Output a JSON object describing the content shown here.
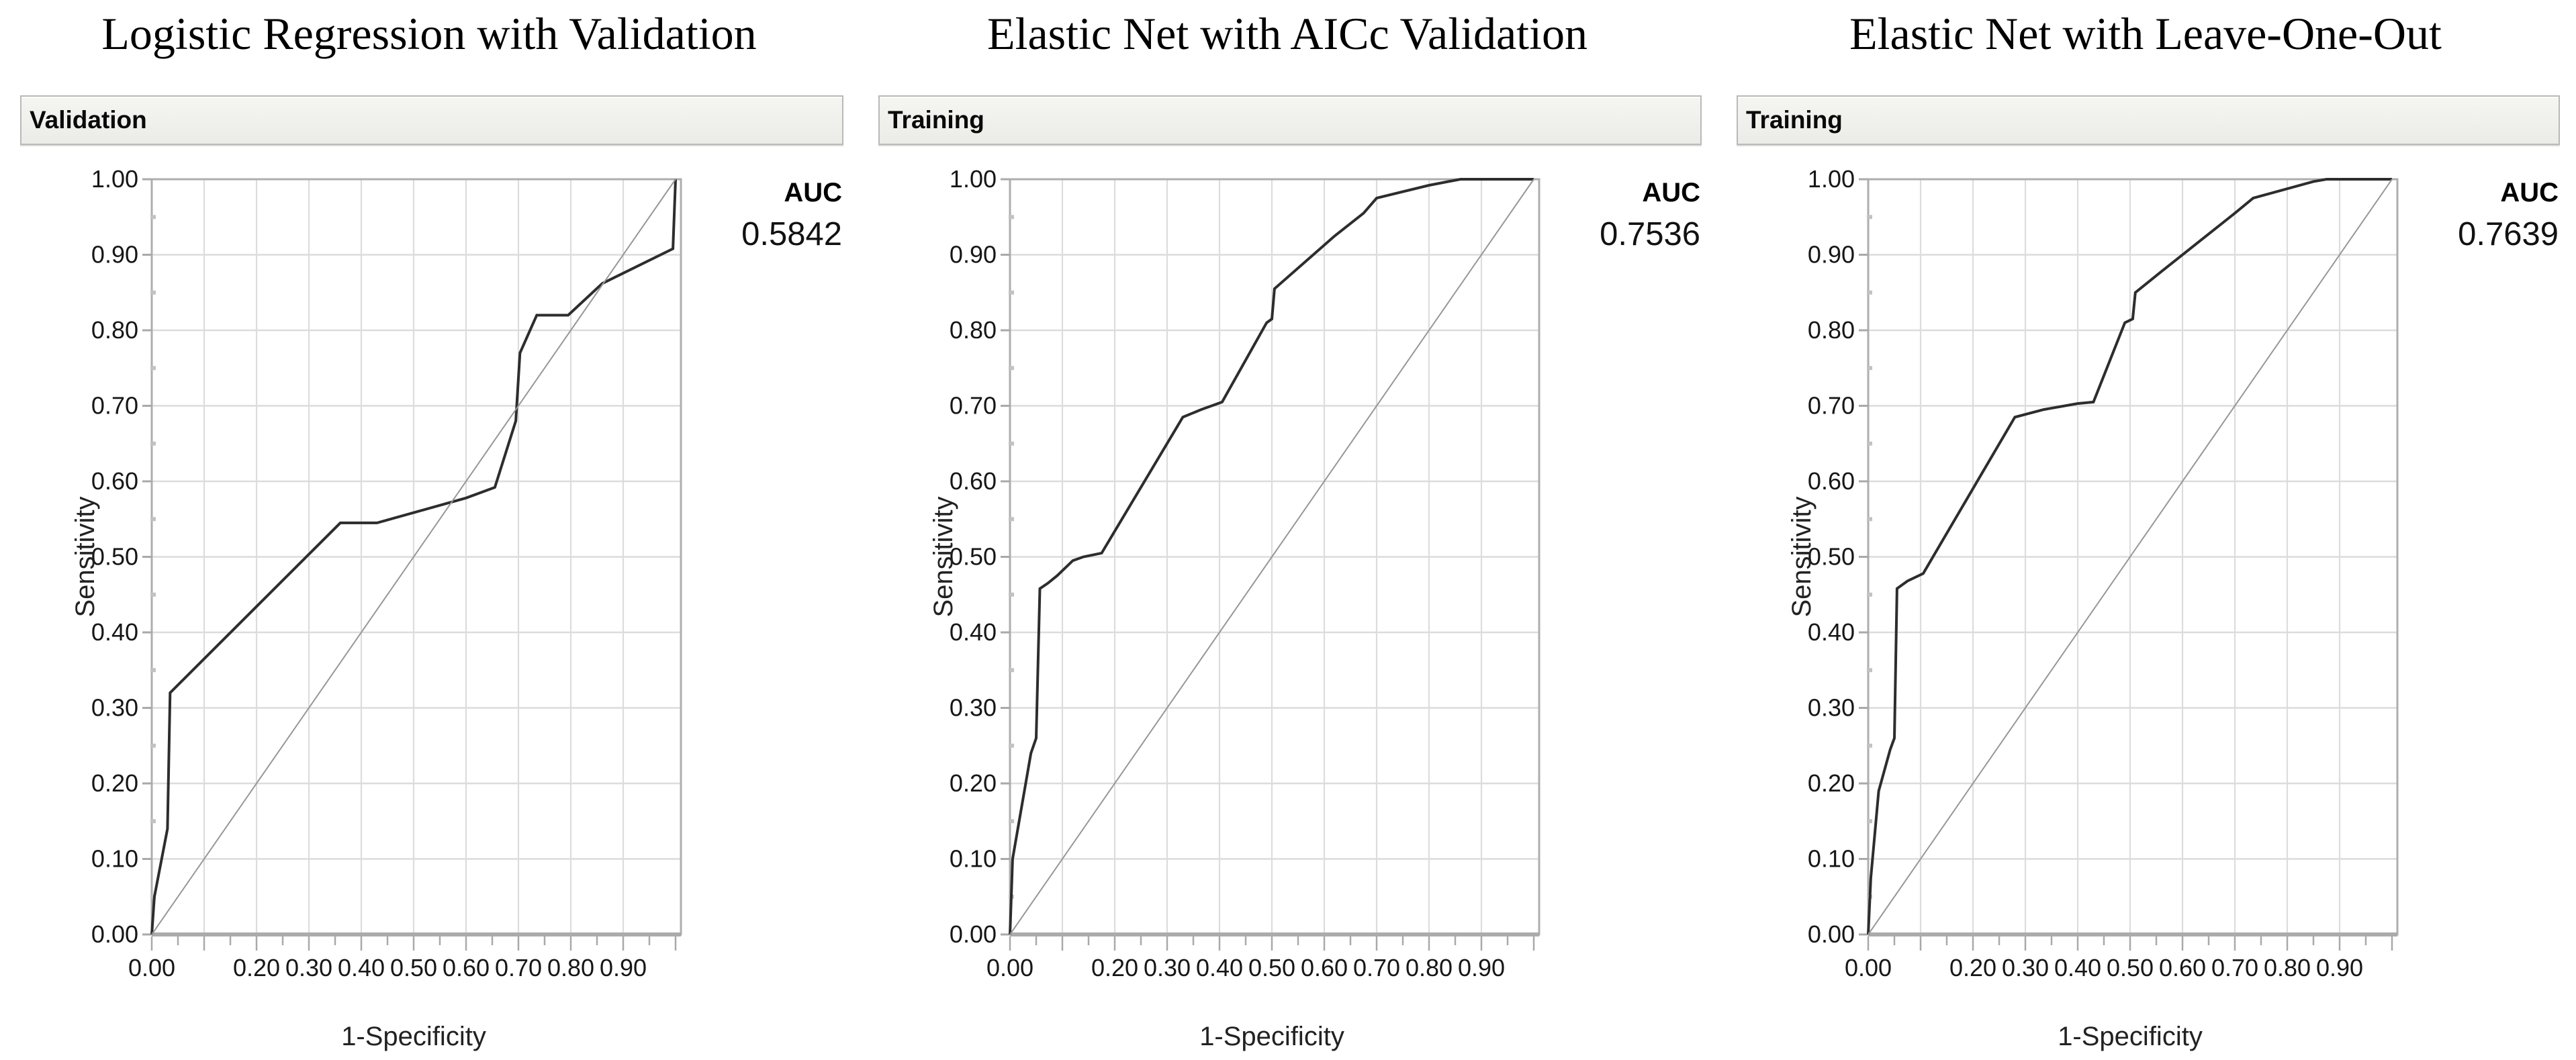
{
  "colors": {
    "background": "#ffffff",
    "grid": "#dcdcdc",
    "frame": "#aeaeae",
    "axis_line": "#ababab",
    "tick": "#a9a9a9",
    "minor_tick": "#c2c2c2",
    "curve": "#2d2d2d",
    "diagonal": "#979797",
    "text": "#161616",
    "header_background": "#f1f1ee",
    "header_border": "#b9b9b6"
  },
  "axes": {
    "x_label": "1-Specificity",
    "y_label": "Sensitivity",
    "x_range": [
      0,
      1.01
    ],
    "y_range": [
      0,
      1.0
    ],
    "grid_step": 0.1,
    "minor_tick_step": 0.05,
    "grid_on": true,
    "x_ticks": [
      {
        "v": 0.0,
        "label": "0.00"
      },
      {
        "v": 0.2,
        "label": "0.20"
      },
      {
        "v": 0.3,
        "label": "0.30"
      },
      {
        "v": 0.4,
        "label": "0.40"
      },
      {
        "v": 0.5,
        "label": "0.50"
      },
      {
        "v": 0.6,
        "label": "0.60"
      },
      {
        "v": 0.7,
        "label": "0.70"
      },
      {
        "v": 0.8,
        "label": "0.80"
      },
      {
        "v": 0.9,
        "label": "0.90"
      }
    ],
    "y_ticks": [
      {
        "v": 0.0,
        "label": "0.00"
      },
      {
        "v": 0.1,
        "label": "0.10"
      },
      {
        "v": 0.2,
        "label": "0.20"
      },
      {
        "v": 0.3,
        "label": "0.30"
      },
      {
        "v": 0.4,
        "label": "0.40"
      },
      {
        "v": 0.5,
        "label": "0.50"
      },
      {
        "v": 0.6,
        "label": "0.60"
      },
      {
        "v": 0.7,
        "label": "0.70"
      },
      {
        "v": 0.8,
        "label": "0.80"
      },
      {
        "v": 0.9,
        "label": "0.90"
      },
      {
        "v": 1.0,
        "label": "1.00"
      }
    ]
  },
  "panels": [
    {
      "title": "Logistic Regression with Validation",
      "section_label": "Validation",
      "auc_label": "AUC",
      "auc_value": "0.5842"
    },
    {
      "title": "Elastic Net with AICc Validation",
      "section_label": "Training",
      "auc_label": "AUC",
      "auc_value": "0.7536"
    },
    {
      "title": "Elastic Net with Leave-One-Out",
      "section_label": "Training",
      "auc_label": "AUC",
      "auc_value": "0.7639"
    }
  ],
  "chart_data": [
    {
      "type": "line",
      "title": "Logistic Regression with Validation",
      "panel_label": "Validation",
      "xlabel": "1-Specificity",
      "ylabel": "Sensitivity",
      "xlim": [
        0,
        1
      ],
      "ylim": [
        0,
        1
      ],
      "auc": 0.5842,
      "series": [
        {
          "name": "ROC curve",
          "points": [
            [
              0,
              0
            ],
            [
              0.005,
              0.05
            ],
            [
              0.03,
              0.14
            ],
            [
              0.035,
              0.32
            ],
            [
              0.36,
              0.545
            ],
            [
              0.43,
              0.545
            ],
            [
              0.6,
              0.578
            ],
            [
              0.655,
              0.592
            ],
            [
              0.695,
              0.68
            ],
            [
              0.703,
              0.77
            ],
            [
              0.735,
              0.82
            ],
            [
              0.795,
              0.82
            ],
            [
              0.86,
              0.862
            ],
            [
              0.995,
              0.908
            ],
            [
              1.0,
              1.0
            ]
          ]
        },
        {
          "name": "Reference diagonal",
          "points": [
            [
              0,
              0
            ],
            [
              1,
              1
            ]
          ]
        }
      ]
    },
    {
      "type": "line",
      "title": "Elastic Net with AICc Validation",
      "panel_label": "Training",
      "xlabel": "1-Specificity",
      "ylabel": "Sensitivity",
      "xlim": [
        0,
        1
      ],
      "ylim": [
        0,
        1
      ],
      "auc": 0.7536,
      "series": [
        {
          "name": "ROC curve",
          "points": [
            [
              0,
              0
            ],
            [
              0.005,
              0.1
            ],
            [
              0.04,
              0.24
            ],
            [
              0.05,
              0.26
            ],
            [
              0.057,
              0.458
            ],
            [
              0.072,
              0.465
            ],
            [
              0.09,
              0.475
            ],
            [
              0.12,
              0.495
            ],
            [
              0.14,
              0.5
            ],
            [
              0.175,
              0.505
            ],
            [
              0.33,
              0.685
            ],
            [
              0.365,
              0.695
            ],
            [
              0.405,
              0.705
            ],
            [
              0.49,
              0.81
            ],
            [
              0.5,
              0.815
            ],
            [
              0.505,
              0.855
            ],
            [
              0.62,
              0.925
            ],
            [
              0.675,
              0.955
            ],
            [
              0.7,
              0.975
            ],
            [
              0.8,
              0.992
            ],
            [
              0.86,
              1.0
            ],
            [
              1.0,
              1.0
            ]
          ]
        },
        {
          "name": "Reference diagonal",
          "points": [
            [
              0,
              0
            ],
            [
              1,
              1
            ]
          ]
        }
      ]
    },
    {
      "type": "line",
      "title": "Elastic Net with Leave-One-Out",
      "panel_label": "Training",
      "xlabel": "1-Specificity",
      "ylabel": "Sensitivity",
      "xlim": [
        0,
        1
      ],
      "ylim": [
        0,
        1
      ],
      "auc": 0.7639,
      "series": [
        {
          "name": "ROC curve",
          "points": [
            [
              0,
              0
            ],
            [
              0.005,
              0.075
            ],
            [
              0.02,
              0.19
            ],
            [
              0.042,
              0.245
            ],
            [
              0.05,
              0.26
            ],
            [
              0.055,
              0.458
            ],
            [
              0.075,
              0.468
            ],
            [
              0.105,
              0.478
            ],
            [
              0.28,
              0.685
            ],
            [
              0.335,
              0.695
            ],
            [
              0.4,
              0.703
            ],
            [
              0.43,
              0.705
            ],
            [
              0.49,
              0.81
            ],
            [
              0.505,
              0.815
            ],
            [
              0.51,
              0.85
            ],
            [
              0.56,
              0.878
            ],
            [
              0.7,
              0.955
            ],
            [
              0.735,
              0.975
            ],
            [
              0.85,
              0.997
            ],
            [
              0.875,
              1.0
            ],
            [
              1.0,
              1.0
            ]
          ]
        },
        {
          "name": "Reference diagonal",
          "points": [
            [
              0,
              0
            ],
            [
              1,
              1
            ]
          ]
        }
      ]
    }
  ]
}
